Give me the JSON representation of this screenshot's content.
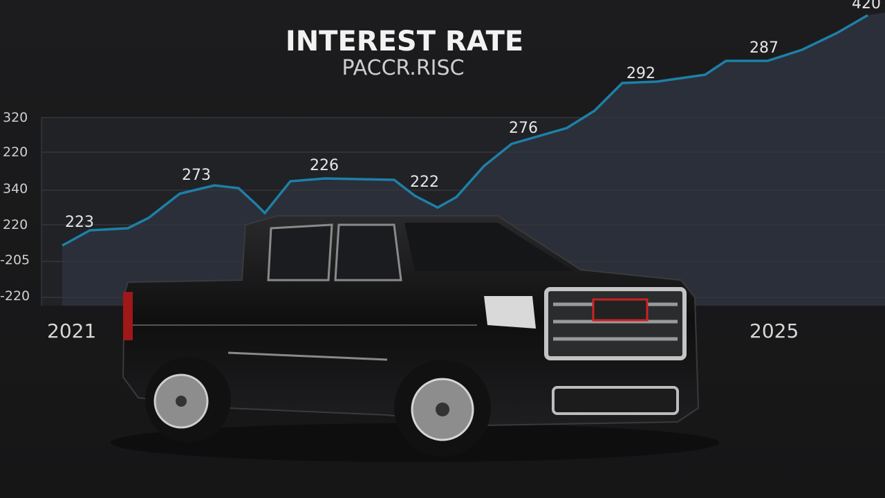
{
  "title": "INTEREST RATE",
  "subtitle": "PACCR.RISC",
  "axis_labels": [
    "320",
    "220",
    "340",
    "220",
    "-205",
    "-220"
  ],
  "point_labels": [
    "223",
    "273",
    "226",
    "222",
    "276",
    "292",
    "287",
    "420"
  ],
  "year_labels": [
    "2021",
    "2025"
  ]
}
